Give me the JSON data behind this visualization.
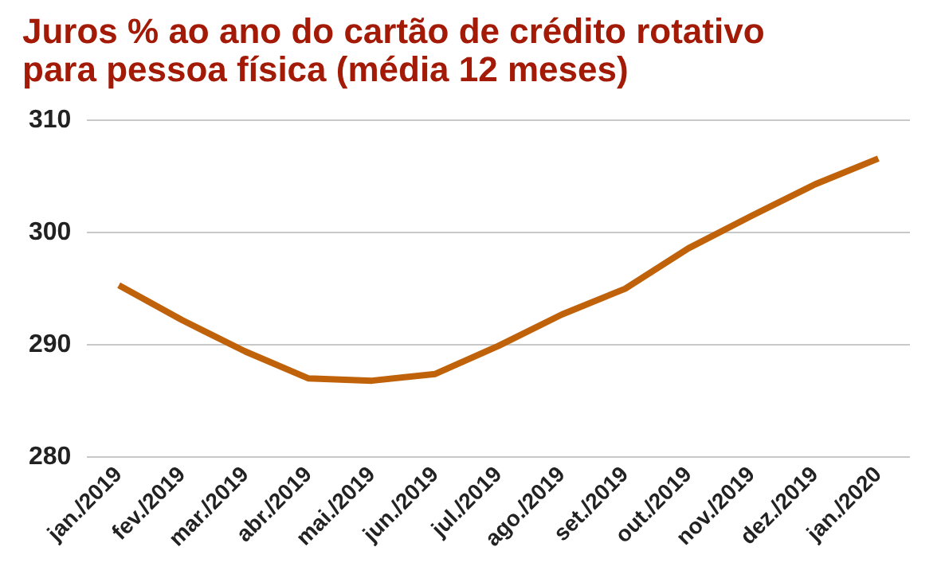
{
  "chart_data": {
    "type": "line",
    "title": "Juros % ao ano do cartão de crédito rotativo\npara pessoa física (média 12 meses)",
    "categories": [
      "jan./2019",
      "fev./2019",
      "mar./2019",
      "abr./2019",
      "mai./2019",
      "jun./2019",
      "jul./2019",
      "ago./2019",
      "set./2019",
      "out./2019",
      "nov./2019",
      "dez./2019",
      "jan./2020"
    ],
    "series": [
      {
        "color": "#c0620a",
        "values": [
          295.3,
          292.2,
          289.4,
          287.0,
          286.8,
          287.4,
          289.9,
          292.7,
          295.0,
          298.6,
          301.5,
          304.3,
          306.6
        ]
      }
    ],
    "ylim": [
      280,
      310
    ],
    "yticks": [
      280,
      290,
      300,
      310
    ],
    "grid": "y",
    "legend": false,
    "marker": "none",
    "line_style": "solid"
  }
}
